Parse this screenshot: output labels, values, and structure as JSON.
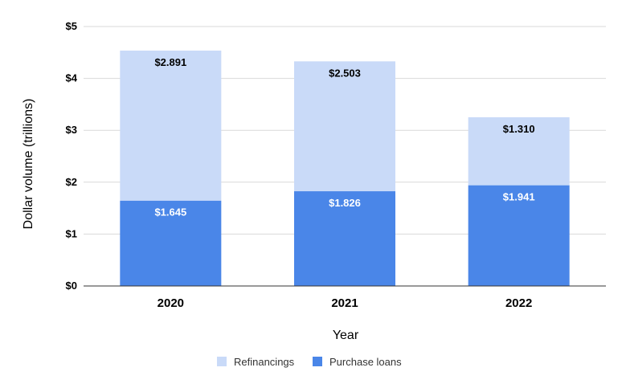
{
  "chart_data": {
    "type": "bar",
    "stacked": true,
    "categories": [
      "2020",
      "2021",
      "2022"
    ],
    "series": [
      {
        "name": "Purchase loans",
        "values": [
          1.645,
          1.826,
          1.941
        ],
        "labels": [
          "$1.645",
          "$1.826",
          "$1.941"
        ],
        "color": "#4a86e8",
        "label_color": "#ffffff"
      },
      {
        "name": "Refinancings",
        "values": [
          2.891,
          2.503,
          1.31
        ],
        "labels": [
          "$2.891",
          "$2.503",
          "$1.310"
        ],
        "color": "#c9daf8",
        "label_color": "#000000"
      }
    ],
    "title": "",
    "xlabel": "Year",
    "ylabel": "Dollar volume (trillions)",
    "ylim": [
      0,
      5
    ],
    "yticks": [
      0,
      1,
      2,
      3,
      4,
      5
    ],
    "ytick_labels": [
      "$0",
      "$1",
      "$2",
      "$3",
      "$4",
      "$5"
    ],
    "grid": true,
    "legend": {
      "position": "bottom",
      "entries": [
        "Refinancings",
        "Purchase loans"
      ]
    }
  },
  "colors": {
    "grid": "#d9d9d9",
    "axis": "#333333",
    "background": "#ffffff"
  }
}
